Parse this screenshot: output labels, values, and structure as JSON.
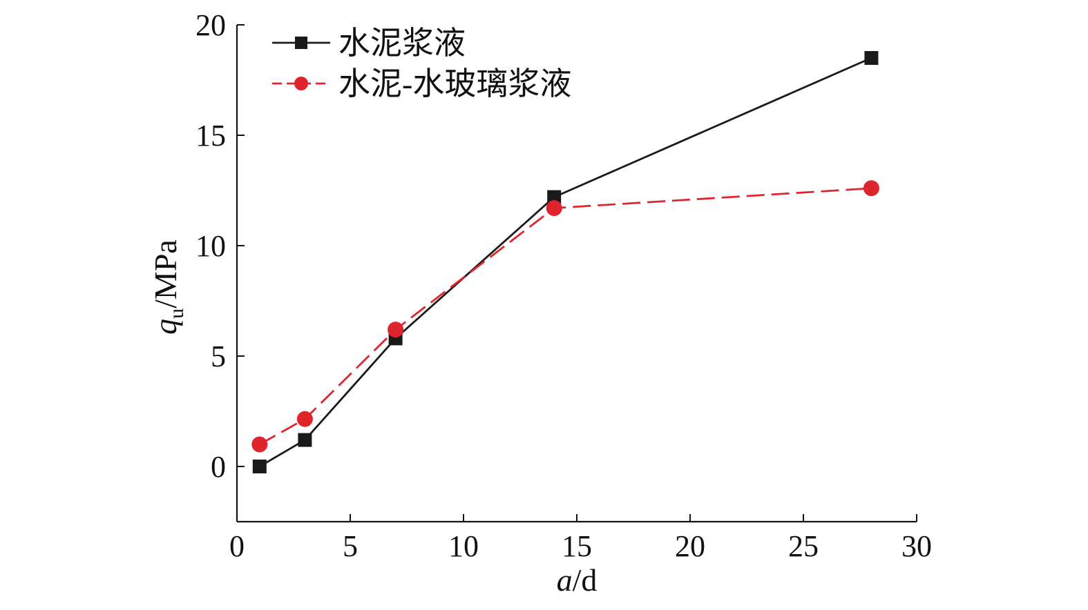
{
  "chart_data": {
    "type": "line",
    "title": "",
    "xlabel": {
      "var": "a",
      "unit": "/d"
    },
    "ylabel": {
      "var": "q",
      "sub": "u",
      "unit": "/MPa"
    },
    "xlim": [
      0,
      30
    ],
    "ylim": [
      -2.5,
      20
    ],
    "xticks": [
      0,
      5,
      10,
      15,
      20,
      25,
      30
    ],
    "yticks": [
      0,
      5,
      10,
      15,
      20
    ],
    "grid": false,
    "legend_position": "top-left",
    "series": [
      {
        "name": "水泥浆液",
        "color": "#1a1a1a",
        "marker": "square",
        "line_style": "solid",
        "x": [
          1,
          3,
          7,
          14,
          28
        ],
        "y": [
          0.0,
          1.2,
          5.8,
          12.2,
          18.5
        ]
      },
      {
        "name": "水泥-水玻璃浆液",
        "color": "#e0242b",
        "marker": "circle",
        "line_style": "dashed",
        "x": [
          1,
          3,
          7,
          14,
          28
        ],
        "y": [
          1.0,
          2.15,
          6.2,
          11.7,
          12.6
        ]
      }
    ]
  }
}
